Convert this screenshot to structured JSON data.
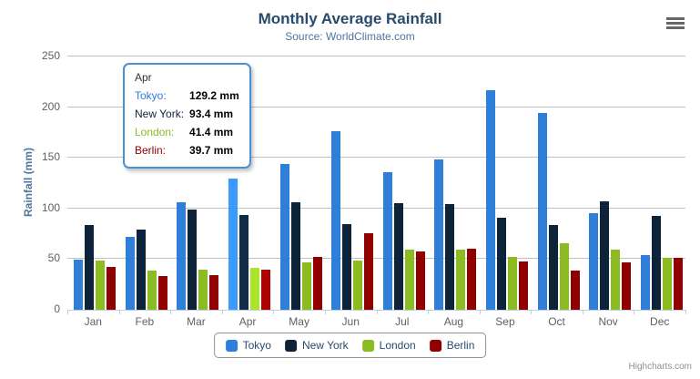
{
  "header": {
    "title": "Monthly Average Rainfall",
    "subtitle": "Source: WorldClimate.com"
  },
  "colors": {
    "title_text": "#274b6d",
    "subtitle_text": "#4d759e",
    "yaxis_title_text": "#4d759e",
    "axis_label_text": "#606060",
    "gridline": "#c0c0c0",
    "axis_line": "#c0d0e0",
    "legend_border": "#909090",
    "legend_text": "#274b6d",
    "credit_text": "#909090",
    "menu_icon": "#666666",
    "tooltip_border": "#4a90d9"
  },
  "icons": {
    "context_menu": "hamburger-icon"
  },
  "chart_data": {
    "type": "bar",
    "title": "Monthly Average Rainfall",
    "subtitle": "Source: WorldClimate.com",
    "categories": [
      "Jan",
      "Feb",
      "Mar",
      "Apr",
      "May",
      "Jun",
      "Jul",
      "Aug",
      "Sep",
      "Oct",
      "Nov",
      "Dec"
    ],
    "series": [
      {
        "name": "Tokyo",
        "color": "#2f7ed8",
        "values": [
          49.9,
          71.5,
          106.4,
          129.2,
          144.0,
          176.0,
          135.6,
          148.5,
          216.4,
          194.1,
          95.6,
          54.4
        ]
      },
      {
        "name": "New York",
        "color": "#0d233a",
        "values": [
          83.6,
          78.8,
          98.5,
          93.4,
          106.0,
          84.5,
          105.0,
          104.3,
          91.2,
          83.5,
          106.6,
          92.3
        ]
      },
      {
        "name": "London",
        "color": "#8bbc21",
        "values": [
          48.9,
          38.8,
          39.3,
          41.4,
          47.0,
          48.3,
          59.0,
          59.6,
          52.4,
          65.2,
          59.3,
          51.2
        ]
      },
      {
        "name": "Berlin",
        "color": "#910000",
        "values": [
          42.4,
          33.2,
          34.5,
          39.7,
          52.6,
          75.5,
          57.4,
          60.4,
          47.6,
          39.1,
          46.8,
          51.1
        ]
      }
    ],
    "xlabel": "",
    "ylabel": "Rainfall (mm)",
    "ylim": [
      0,
      250
    ],
    "yticks": [
      0,
      50,
      100,
      150,
      200,
      250
    ],
    "grid": true,
    "legend_position": "bottom",
    "hovered_category": "Apr"
  },
  "tooltip": {
    "header": "Apr",
    "rows": [
      {
        "label": "Tokyo:",
        "value": "129.2 mm",
        "color": "#2f7ed8"
      },
      {
        "label": "New York:",
        "value": "93.4 mm",
        "color": "#0d233a"
      },
      {
        "label": "London:",
        "value": "41.4 mm",
        "color": "#8bbc21"
      },
      {
        "label": "Berlin:",
        "value": "39.7 mm",
        "color": "#910000"
      }
    ]
  },
  "legend": {
    "items": [
      "Tokyo",
      "New York",
      "London",
      "Berlin"
    ]
  },
  "credit": "Highcharts.com"
}
